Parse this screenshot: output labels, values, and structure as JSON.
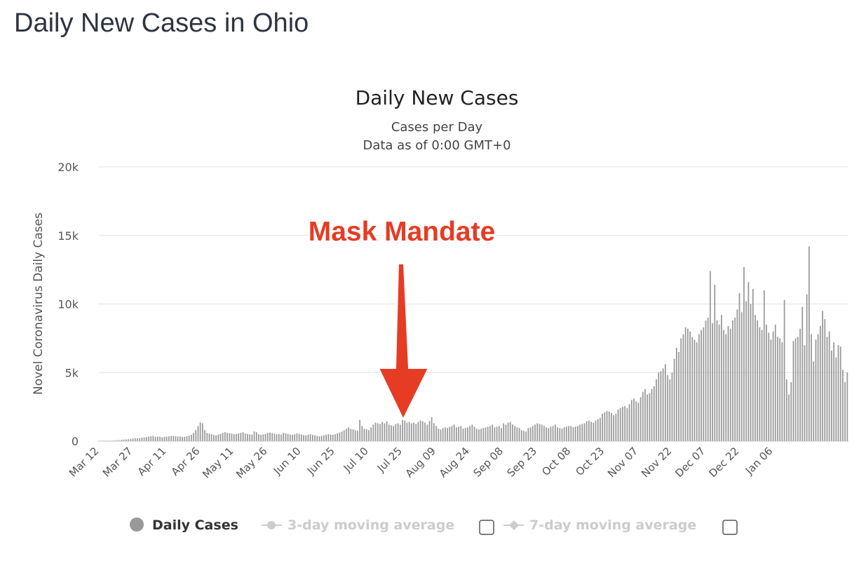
{
  "page": {
    "title": "Daily New Cases in Ohio"
  },
  "chart_data": {
    "type": "bar",
    "title": "Daily New Cases",
    "subtitle_lines": [
      "Cases per Day",
      "Data as of 0:00 GMT+0"
    ],
    "ylabel": "Novel Coronavirus Daily Cases",
    "xlabel": "",
    "ylim": [
      0,
      20000
    ],
    "y_ticks": [
      0,
      5000,
      10000,
      15000,
      20000
    ],
    "y_tick_labels": [
      "0",
      "5k",
      "10k",
      "15k",
      "20k"
    ],
    "x_tick_labels": [
      "Mar 12",
      "Mar 27",
      "Apr 11",
      "Apr 26",
      "May 11",
      "May 26",
      "Jun 10",
      "Jun 25",
      "Jul 10",
      "Jul 25",
      "Aug 09",
      "Aug 24",
      "Sep 08",
      "Sep 23",
      "Oct 08",
      "Oct 23",
      "Nov 07",
      "Nov 22",
      "Dec 07",
      "Dec 22",
      "Jan 06"
    ],
    "x_tick_indices": [
      0,
      15,
      30,
      45,
      60,
      75,
      90,
      105,
      120,
      135,
      150,
      165,
      180,
      195,
      210,
      225,
      240,
      255,
      270,
      285,
      300
    ],
    "first_date": "Mar 12",
    "grid": true,
    "legend_position": "bottom",
    "series": [
      {
        "name": "Daily Cases",
        "color": "#999999",
        "values": [
          5,
          10,
          15,
          20,
          30,
          40,
          50,
          60,
          80,
          90,
          100,
          110,
          120,
          130,
          150,
          180,
          200,
          210,
          220,
          250,
          270,
          300,
          330,
          350,
          380,
          300,
          330,
          320,
          280,
          310,
          330,
          350,
          370,
          380,
          350,
          330,
          340,
          300,
          310,
          350,
          400,
          460,
          600,
          800,
          1100,
          1350,
          1300,
          800,
          600,
          550,
          500,
          450,
          420,
          480,
          520,
          600,
          650,
          600,
          580,
          550,
          500,
          520,
          560,
          600,
          650,
          550,
          520,
          500,
          480,
          700,
          650,
          500,
          450,
          480,
          520,
          600,
          620,
          580,
          540,
          500,
          520,
          480,
          600,
          560,
          520,
          480,
          460,
          500,
          560,
          520,
          480,
          440,
          420,
          460,
          500,
          450,
          420,
          380,
          350,
          380,
          420,
          460,
          500,
          480,
          460,
          500,
          560,
          620,
          700,
          800,
          900,
          1000,
          880,
          850,
          800,
          750,
          1550,
          1100,
          900,
          850,
          800,
          1000,
          1200,
          1350,
          1300,
          1250,
          1400,
          1300,
          1450,
          1200,
          1150,
          1100,
          1250,
          1300,
          1200,
          1550,
          1500,
          1350,
          1400,
          1300,
          1350,
          1250,
          1400,
          1500,
          1450,
          1350,
          1200,
          1450,
          1750,
          1300,
          1100,
          900,
          850,
          950,
          1000,
          950,
          1050,
          1100,
          1200,
          1000,
          1050,
          1100,
          900,
          950,
          1000,
          1100,
          1200,
          1050,
          900,
          850,
          900,
          950,
          1000,
          1050,
          1100,
          1200,
          1000,
          1050,
          1100,
          950,
          1300,
          1200,
          1350,
          1400,
          1200,
          1100,
          1000,
          950,
          800,
          750,
          700,
          950,
          1000,
          1100,
          1200,
          1300,
          1250,
          1200,
          1100,
          1000,
          950,
          1050,
          1100,
          1200,
          1000,
          950,
          900,
          1000,
          1050,
          1100,
          1100,
          1000,
          1050,
          1100,
          1200,
          1250,
          1300,
          1450,
          1500,
          1400,
          1350,
          1500,
          1600,
          1700,
          2000,
          2100,
          2200,
          2150,
          2050,
          1900,
          2000,
          2300,
          2400,
          2500,
          2550,
          2400,
          2700,
          3000,
          3100,
          2900,
          2800,
          3200,
          3600,
          3800,
          3400,
          3500,
          3800,
          4000,
          4500,
          5000,
          5100,
          5300,
          5600,
          4800,
          4500,
          5000,
          6000,
          6800,
          6500,
          7500,
          7800,
          8300,
          8200,
          8000,
          7600,
          7400,
          7200,
          7800,
          8100,
          8300,
          8800,
          9000,
          12400,
          8600,
          11400,
          8800,
          8500,
          9200,
          8100,
          7800,
          8400,
          8200,
          8800,
          9000,
          9600,
          10800,
          9400,
          12700,
          10200,
          11600,
          10000,
          11100,
          9200,
          8800,
          8300,
          8100,
          11000,
          8500,
          7900,
          7400,
          8000,
          8500,
          7600,
          7500,
          7200,
          10300,
          4500,
          3400,
          4300,
          7300,
          7500,
          7600,
          8200,
          9800,
          7000,
          10700,
          14200,
          7800,
          5800,
          7400,
          7800,
          8400,
          9500,
          8900,
          7600,
          8000,
          6600,
          7200,
          6100,
          7000,
          6900,
          5200,
          4300,
          5000
        ]
      },
      {
        "name": "3-day moving average",
        "color": "#cccccc"
      },
      {
        "name": "7-day moving average",
        "color": "#cccccc"
      }
    ],
    "annotations": [
      {
        "text": "Mask Mandate",
        "target_index": 132,
        "color": "#e63c24"
      }
    ]
  }
}
